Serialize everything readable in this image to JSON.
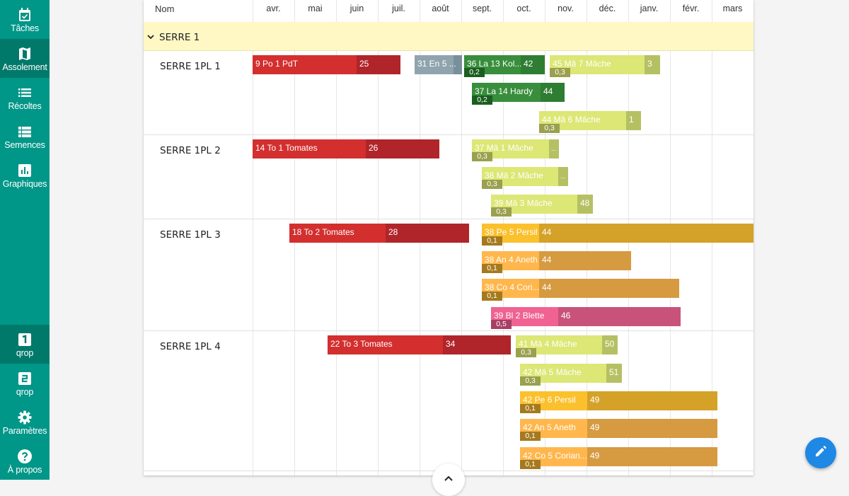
{
  "sidebar": {
    "items": [
      {
        "label": "Tâches",
        "icon": "calendar-check-icon"
      },
      {
        "label": "Assolement",
        "icon": "map-icon"
      },
      {
        "label": "Récoltes",
        "icon": "list-icon"
      },
      {
        "label": "Semences",
        "icon": "table-list-icon"
      },
      {
        "label": "Graphiques",
        "icon": "bar-chart-icon"
      },
      {
        "label": "qrop",
        "icon": "number-1-icon"
      },
      {
        "label": "qrop",
        "icon": "number-2-icon"
      },
      {
        "label": "Paramètres",
        "icon": "gear-icon"
      },
      {
        "label": "À propos",
        "icon": "help-icon"
      }
    ]
  },
  "header": {
    "name_label": "Nom",
    "months": [
      "avr.",
      "mai",
      "juin",
      "juil.",
      "août",
      "sept.",
      "oct.",
      "nov.",
      "déc.",
      "janv.",
      "févr.",
      "mars"
    ]
  },
  "group": {
    "label": "SERRE 1"
  },
  "rows": [
    {
      "label": "SERRE 1PL 1"
    },
    {
      "label": "SERRE 1PL 2"
    },
    {
      "label": "SERRE 1PL 3"
    },
    {
      "label": "SERRE 1PL 4"
    }
  ],
  "bars": [
    {
      "row": 0,
      "text": "9 Po 1 PdT",
      "end_text": "25",
      "sub": "",
      "color": "#d32f2f",
      "dark": "#b0252a"
    },
    {
      "row": 0,
      "text": "31 En 5 ...",
      "end_text": "",
      "sub": "",
      "color": "#90a4ae",
      "dark": "#78909c"
    },
    {
      "row": 0,
      "text": "36 La 13 Kol...",
      "end_text": "42",
      "sub": "0,2",
      "color": "#388e3c",
      "dark": "#2e7d32"
    },
    {
      "row": 0,
      "text": "45 Mâ 7 Mâche",
      "end_text": "3",
      "sub": "0,3",
      "color": "#dce775",
      "dark": "#b5c063"
    },
    {
      "row": 0,
      "text": "37 La 14 Hardy",
      "end_text": "44",
      "sub": "0,2",
      "color": "#388e3c",
      "dark": "#2e7d32"
    },
    {
      "row": 0,
      "text": "44 Mâ 6 Mâche",
      "end_text": "1",
      "sub": "0,3",
      "color": "#dce775",
      "dark": "#b5c063"
    },
    {
      "row": 1,
      "text": "14 To 1 Tomates",
      "end_text": "26",
      "sub": "",
      "color": "#d32f2f",
      "dark": "#b0252a"
    },
    {
      "row": 1,
      "text": "37 Mâ 1 Mâche",
      "end_text": "...",
      "sub": "0,3",
      "color": "#dce775",
      "dark": "#b5c063"
    },
    {
      "row": 1,
      "text": "38 Mâ 2 Mâche",
      "end_text": "...",
      "sub": "0,3",
      "color": "#dce775",
      "dark": "#b5c063"
    },
    {
      "row": 1,
      "text": "39 Mâ 3 Mâche",
      "end_text": "48",
      "sub": "0,3",
      "color": "#dce775",
      "dark": "#b5c063"
    },
    {
      "row": 2,
      "text": "18 To 2 Tomates",
      "end_text": "28",
      "sub": "",
      "color": "#d32f2f",
      "dark": "#b0252a"
    },
    {
      "row": 2,
      "text": "38 Pe 5 Persil",
      "end_text": "44",
      "sub": "0,1",
      "color": "#fbc02d",
      "dark": "#d4a228"
    },
    {
      "row": 2,
      "text": "38 An 4 Aneth",
      "end_text": "44",
      "sub": "0,1",
      "color": "#ffb74d",
      "dark": "#d69a40"
    },
    {
      "row": 2,
      "text": "38 Co 4 Cori...",
      "end_text": "44",
      "sub": "0,1",
      "color": "#ffb74d",
      "dark": "#d69a40"
    },
    {
      "row": 2,
      "text": "39 Bl 2 Blette",
      "end_text": "46",
      "sub": "0,5",
      "color": "#f06292",
      "dark": "#c8527a"
    },
    {
      "row": 3,
      "text": "22 To 3 Tomates",
      "end_text": "34",
      "sub": "",
      "color": "#d32f2f",
      "dark": "#b0252a"
    },
    {
      "row": 3,
      "text": "41 Mâ 4 Mâche",
      "end_text": "50",
      "sub": "0,3",
      "color": "#dce775",
      "dark": "#b5c063"
    },
    {
      "row": 3,
      "text": "42 Mâ 5 Mâche",
      "end_text": "51",
      "sub": "0,3",
      "color": "#dce775",
      "dark": "#b5c063"
    },
    {
      "row": 3,
      "text": "42 Pe 6 Persil",
      "end_text": "49",
      "sub": "0,1",
      "color": "#fbc02d",
      "dark": "#d4a228"
    },
    {
      "row": 3,
      "text": "42 An 5 Aneth",
      "end_text": "49",
      "sub": "0,1",
      "color": "#ffb74d",
      "dark": "#d69a40"
    },
    {
      "row": 3,
      "text": "42 Co 5 Corian...",
      "end_text": "49",
      "sub": "0,1",
      "color": "#ffb74d",
      "dark": "#d69a40"
    }
  ]
}
